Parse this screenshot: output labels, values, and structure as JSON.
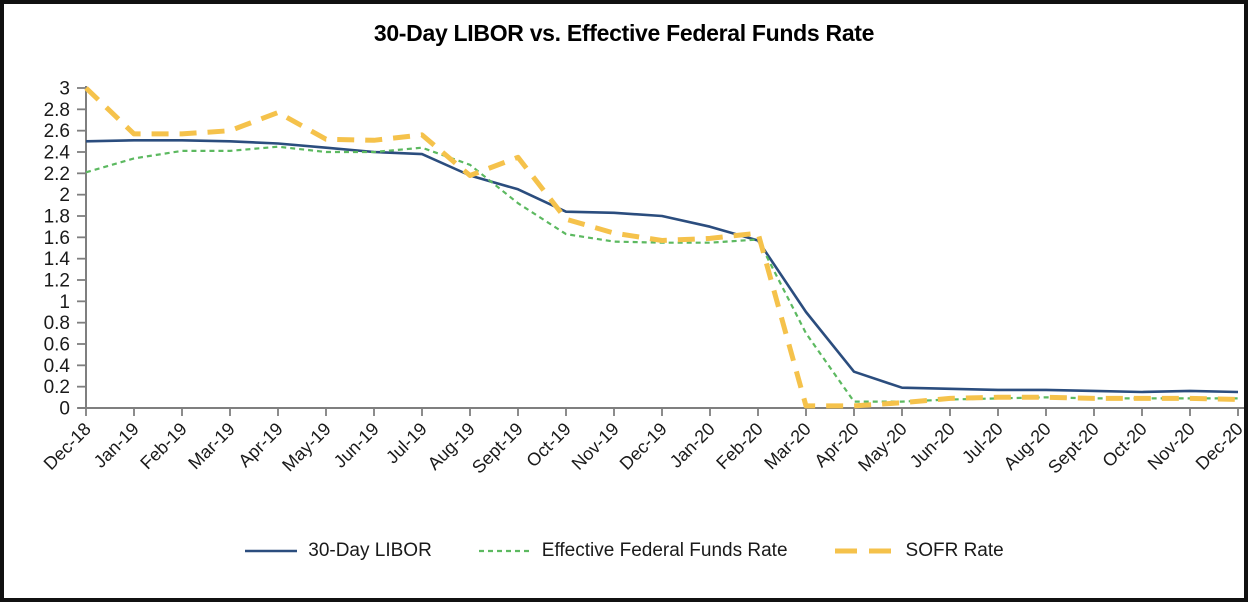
{
  "title": "30-Day LIBOR vs. Effective Federal Funds Rate",
  "legend": {
    "items": [
      {
        "label": "30-Day LIBOR"
      },
      {
        "label": "Effective Federal Funds Rate"
      },
      {
        "label": "SOFR Rate"
      }
    ]
  },
  "colors": {
    "libor_blue": "#2b4d7e",
    "effr_green": "#5cb960",
    "sofr_gold": "#f5c24b",
    "axis_gray": "#7f7f7f",
    "label_black": "#1a1a1a"
  },
  "chart_data": {
    "type": "line",
    "title": "30-Day LIBOR vs. Effective Federal Funds Rate",
    "categories": [
      "Dec-18",
      "Jan-19",
      "Feb-19",
      "Mar-19",
      "Apr-19",
      "May-19",
      "Jun-19",
      "Jul-19",
      "Aug-19",
      "Sept-19",
      "Oct-19",
      "Nov-19",
      "Dec-19",
      "Jan-20",
      "Feb-20",
      "Mar-20",
      "Apr-20",
      "May-20",
      "Jun-20",
      "Jul-20",
      "Aug-20",
      "Sept-20",
      "Oct-20",
      "Nov-20",
      "Dec-20"
    ],
    "series": [
      {
        "name": "30-Day LIBOR",
        "style": "solid",
        "color": "#2b4d7e",
        "width": 2.6,
        "values": [
          2.5,
          2.51,
          2.51,
          2.5,
          2.48,
          2.44,
          2.4,
          2.38,
          2.18,
          2.05,
          1.84,
          1.83,
          1.8,
          1.7,
          1.57,
          0.9,
          0.34,
          0.19,
          0.18,
          0.17,
          0.17,
          0.16,
          0.15,
          0.16,
          0.15
        ]
      },
      {
        "name": "Effective Federal Funds Rate",
        "style": "short-dash",
        "color": "#5cb960",
        "width": 2.2,
        "values": [
          2.21,
          2.34,
          2.41,
          2.41,
          2.45,
          2.4,
          2.4,
          2.44,
          2.28,
          1.92,
          1.63,
          1.56,
          1.55,
          1.55,
          1.58,
          0.7,
          0.06,
          0.06,
          0.08,
          0.09,
          0.1,
          0.09,
          0.09,
          0.09,
          0.09
        ]
      },
      {
        "name": "SOFR Rate",
        "style": "long-dash",
        "color": "#f5c24b",
        "width": 5,
        "values": [
          3.0,
          2.57,
          2.57,
          2.6,
          2.77,
          2.52,
          2.51,
          2.56,
          2.18,
          2.35,
          1.77,
          1.64,
          1.57,
          1.59,
          1.64,
          0.02,
          0.02,
          0.05,
          0.09,
          0.1,
          0.1,
          0.09,
          0.09,
          0.09,
          0.08
        ]
      }
    ],
    "xlabel": "",
    "ylabel": "",
    "ylim": [
      0,
      3
    ],
    "y_tick_step": 0.2,
    "y_tick_labels": [
      "0",
      "0.2",
      "0.4",
      "0.6",
      "0.8",
      "1",
      "1.2",
      "1.4",
      "1.6",
      "1.8",
      "2",
      "2.2",
      "2.4",
      "2.6",
      "2.8",
      "3"
    ],
    "grid": false,
    "legend_position": "bottom",
    "x_label_rotation": -45
  }
}
